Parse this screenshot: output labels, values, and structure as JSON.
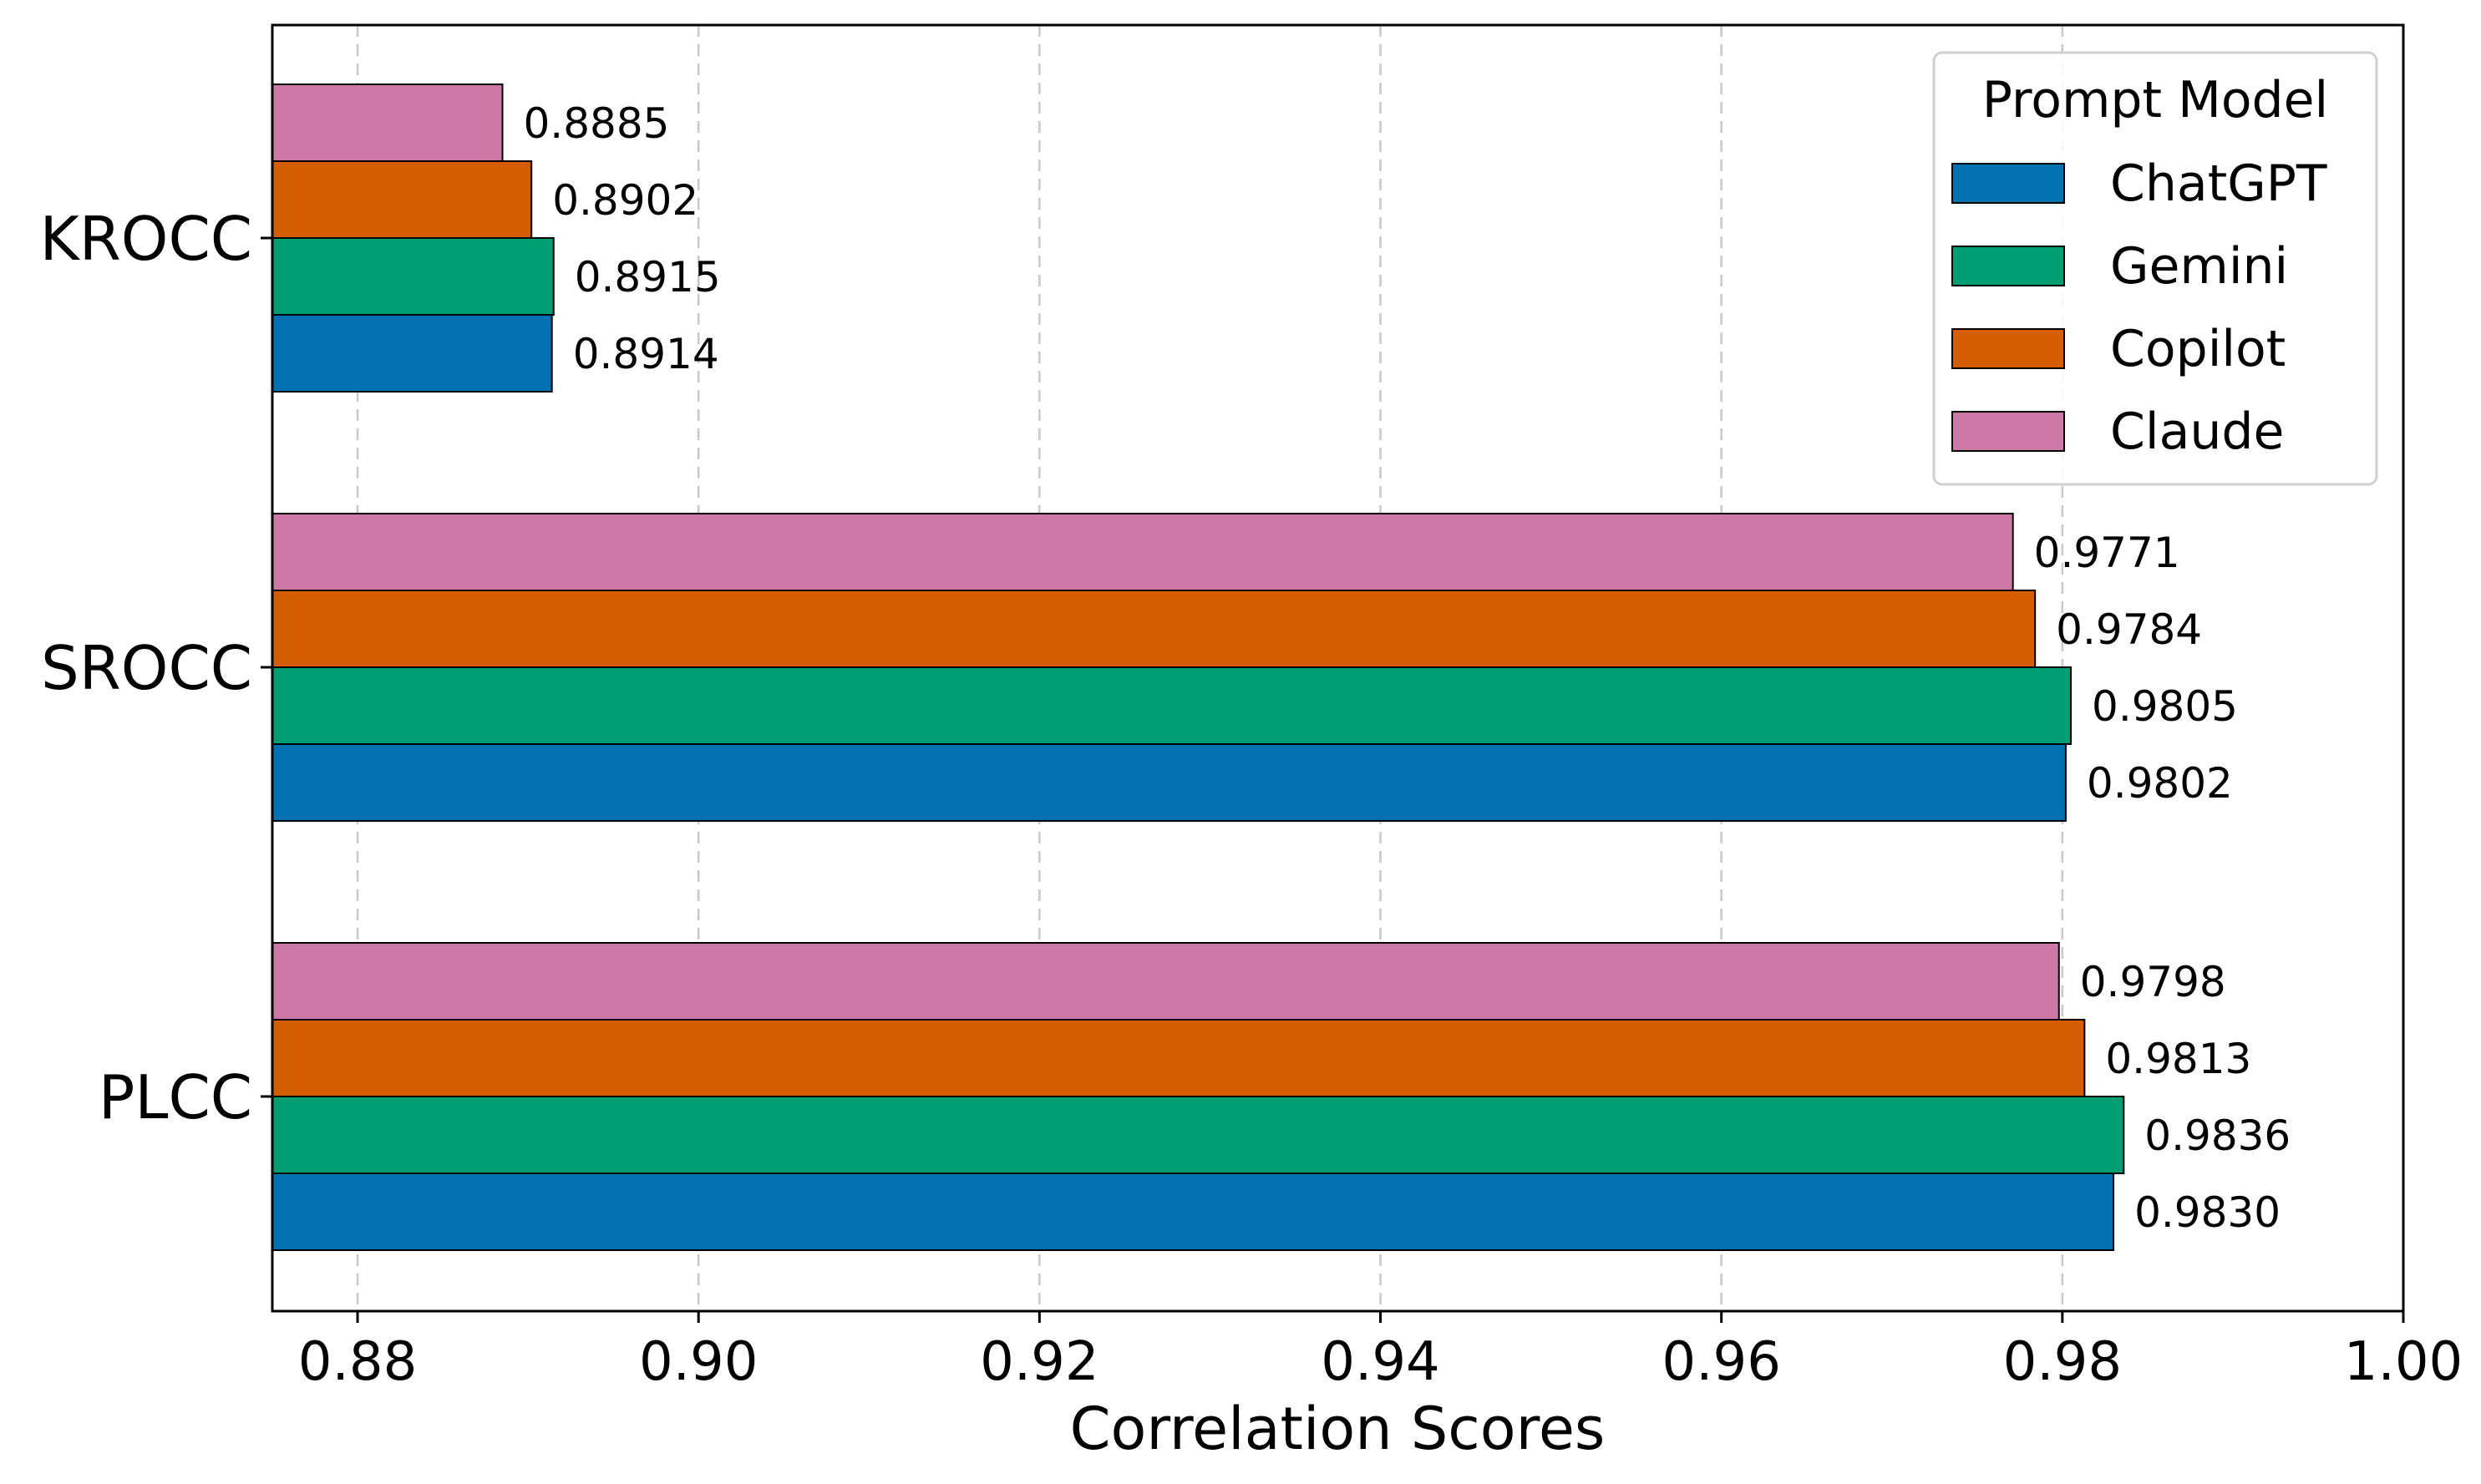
{
  "chart_data": {
    "type": "bar",
    "orientation": "horizontal",
    "xlabel": "Correlation Scores",
    "ylabel": "",
    "xlim": [
      0.875,
      1.0
    ],
    "xticks": [
      0.88,
      0.9,
      0.92,
      0.94,
      0.96,
      0.98,
      1.0
    ],
    "xtick_labels": [
      "0.88",
      "0.90",
      "0.92",
      "0.94",
      "0.96",
      "0.98",
      "1.00"
    ],
    "grid": "x-dashed",
    "categories": [
      "KROCC",
      "SROCC",
      "PLCC"
    ],
    "legend": {
      "title": "Prompt Model",
      "placement": "top-right"
    },
    "series": [
      {
        "name": "ChatGPT",
        "color": "#0072B2",
        "values": [
          0.8914,
          0.9802,
          0.983
        ],
        "labels": [
          "0.8914",
          "0.9802",
          "0.9830"
        ]
      },
      {
        "name": "Gemini",
        "color": "#009E73",
        "values": [
          0.8915,
          0.9805,
          0.9836
        ],
        "labels": [
          "0.8915",
          "0.9805",
          "0.9836"
        ]
      },
      {
        "name": "Copilot",
        "color": "#D55E00",
        "values": [
          0.8902,
          0.9784,
          0.9813
        ],
        "labels": [
          "0.8902",
          "0.9784",
          "0.9813"
        ]
      },
      {
        "name": "Claude",
        "color": "#CC79A7",
        "values": [
          0.8885,
          0.9771,
          0.9798
        ],
        "labels": [
          "0.8885",
          "0.9771",
          "0.9798"
        ]
      }
    ]
  }
}
